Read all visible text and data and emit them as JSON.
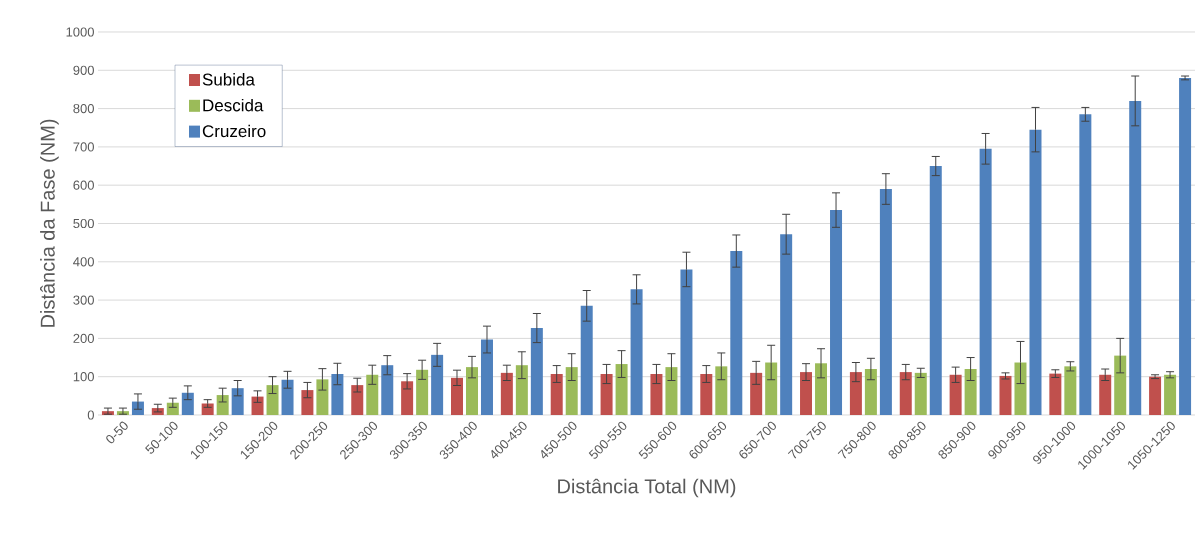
{
  "chart_data": {
    "type": "bar",
    "xlabel": "Distância Total (NM)",
    "ylabel": "Distância da Fase (NM)",
    "categories": [
      "0-50",
      "50-100",
      "100-150",
      "150-200",
      "200-250",
      "250-300",
      "300-350",
      "350-400",
      "400-450",
      "450-500",
      "500-550",
      "550-600",
      "600-650",
      "650-700",
      "700-750",
      "750-800",
      "800-850",
      "850-900",
      "900-950",
      "950-1000",
      "1000-1050",
      "1050-1250"
    ],
    "series": [
      {
        "name": "Subida",
        "color": "#c0504d",
        "values": [
          10,
          18,
          30,
          48,
          65,
          78,
          88,
          97,
          110,
          107,
          107,
          107,
          107,
          110,
          112,
          112,
          112,
          105,
          102,
          108,
          105,
          100
        ],
        "errors": [
          8,
          10,
          10,
          15,
          20,
          18,
          20,
          20,
          20,
          22,
          25,
          25,
          22,
          30,
          22,
          25,
          20,
          20,
          8,
          10,
          15,
          5
        ]
      },
      {
        "name": "Descida",
        "color": "#9bbb59",
        "values": [
          10,
          32,
          52,
          78,
          93,
          105,
          118,
          125,
          130,
          125,
          133,
          125,
          127,
          137,
          135,
          120,
          110,
          120,
          137,
          127,
          155,
          105
        ],
        "errors": [
          8,
          12,
          18,
          22,
          28,
          25,
          25,
          28,
          35,
          35,
          35,
          35,
          35,
          45,
          38,
          28,
          12,
          30,
          55,
          12,
          45,
          8
        ]
      },
      {
        "name": "Cruzeiro",
        "color": "#4f81bd",
        "values": [
          35,
          58,
          70,
          92,
          107,
          130,
          157,
          197,
          227,
          285,
          328,
          380,
          428,
          472,
          535,
          590,
          650,
          695,
          745,
          785,
          820,
          880
        ],
        "errors": [
          20,
          18,
          20,
          22,
          28,
          25,
          30,
          35,
          38,
          40,
          38,
          45,
          42,
          52,
          45,
          40,
          25,
          40,
          58,
          18,
          65,
          5
        ]
      }
    ],
    "ylim": [
      0,
      1000
    ],
    "yticks": [
      0,
      100,
      200,
      300,
      400,
      500,
      600,
      700,
      800,
      900,
      1000
    ],
    "grid": "y",
    "legend": "top left"
  }
}
